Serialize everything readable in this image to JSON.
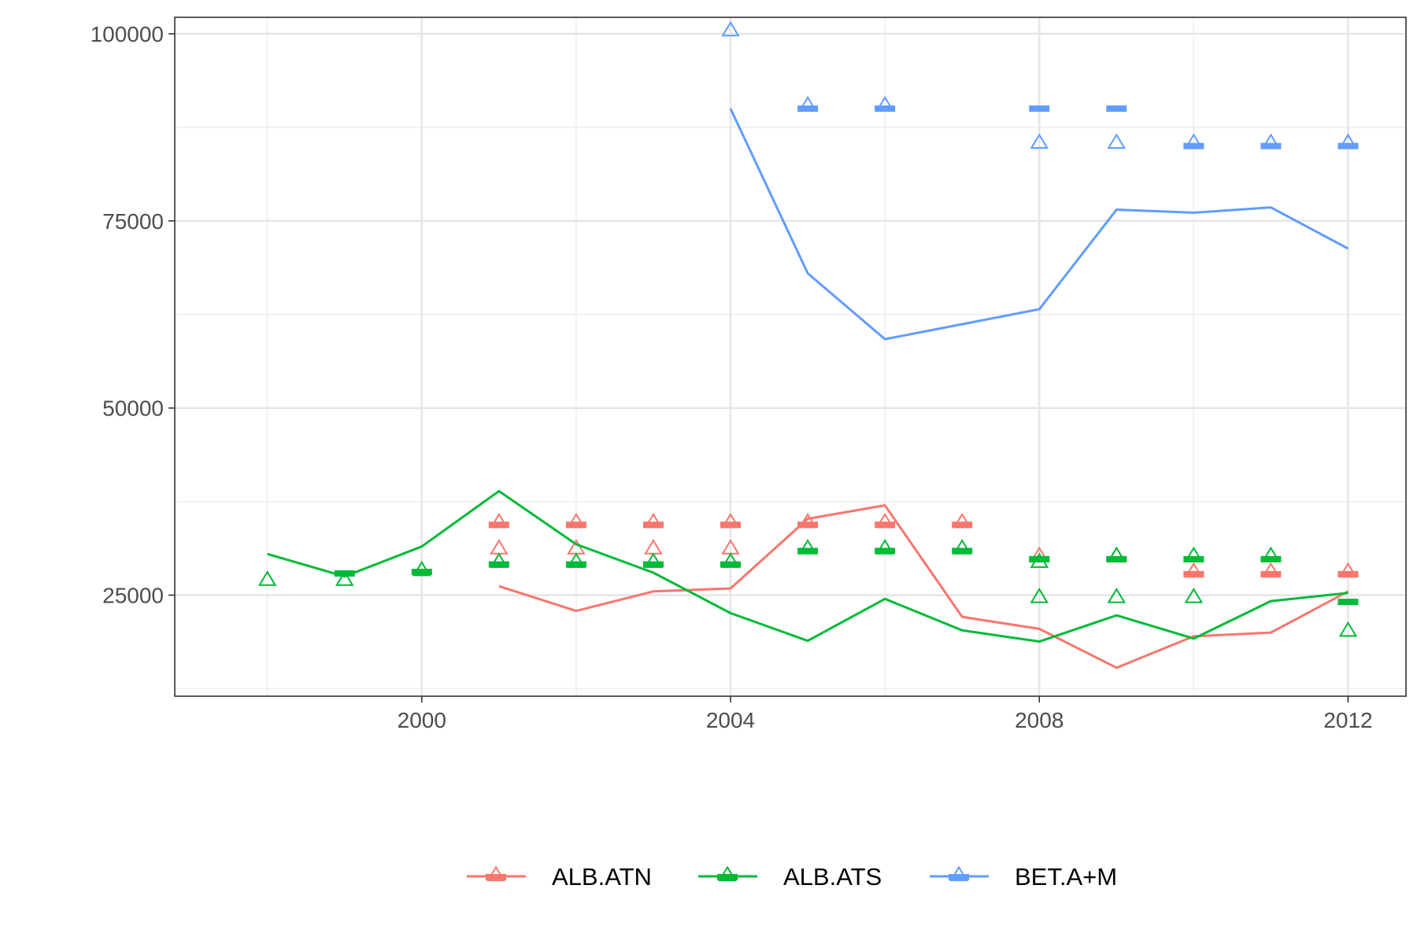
{
  "chart_data": {
    "type": "line",
    "title": "",
    "xlabel": "",
    "ylabel": "",
    "xlim": [
      1996.8,
      2012.75
    ],
    "ylim": [
      11500,
      102200
    ],
    "x_ticks": [
      2000,
      2004,
      2008,
      2012
    ],
    "y_ticks": [
      25000,
      50000,
      75000,
      100000
    ],
    "x_tick_labels": [
      "2000",
      "2004",
      "2008",
      "2012"
    ],
    "y_tick_labels": [
      "25000",
      "50000",
      "75000",
      "100000"
    ],
    "grid": true,
    "legend_position": "bottom",
    "series": [
      {
        "name": "ALB.ATN",
        "color": "#F8766D",
        "line": [
          [
            2001,
            26200
          ],
          [
            2002,
            22900
          ],
          [
            2003,
            25500
          ],
          [
            2004,
            25900
          ],
          [
            2005,
            35200
          ],
          [
            2006,
            37000
          ],
          [
            2007,
            22100
          ],
          [
            2008,
            20500
          ],
          [
            2009,
            15300
          ],
          [
            2010,
            19500
          ],
          [
            2011,
            20000
          ],
          [
            2012,
            25500
          ]
        ],
        "triangles": [
          [
            2001,
            34800
          ],
          [
            2001,
            31300
          ],
          [
            2002,
            34800
          ],
          [
            2002,
            31300
          ],
          [
            2003,
            34800
          ],
          [
            2003,
            31300
          ],
          [
            2004,
            34800
          ],
          [
            2004,
            31300
          ],
          [
            2005,
            34800
          ],
          [
            2006,
            34800
          ],
          [
            2007,
            34800
          ],
          [
            2008,
            30300
          ],
          [
            2009,
            30300
          ],
          [
            2010,
            28200
          ],
          [
            2011,
            28200
          ],
          [
            2012,
            28200
          ]
        ],
        "dashes": [
          [
            2001,
            34400
          ],
          [
            2002,
            34400
          ],
          [
            2003,
            34400
          ],
          [
            2004,
            34400
          ],
          [
            2005,
            34400
          ],
          [
            2006,
            34400
          ],
          [
            2007,
            34400
          ],
          [
            2008,
            29800
          ],
          [
            2009,
            29800
          ],
          [
            2010,
            27800
          ],
          [
            2011,
            27800
          ],
          [
            2012,
            27800
          ]
        ]
      },
      {
        "name": "ALB.ATS",
        "color": "#00BA38",
        "line": [
          [
            1998,
            30500
          ],
          [
            1999,
            27500
          ],
          [
            2000,
            31500
          ],
          [
            2001,
            38900
          ],
          [
            2002,
            31800
          ],
          [
            2003,
            28000
          ],
          [
            2004,
            22600
          ],
          [
            2005,
            18900
          ],
          [
            2006,
            24500
          ],
          [
            2007,
            20300
          ],
          [
            2008,
            18800
          ],
          [
            2009,
            22300
          ],
          [
            2010,
            19200
          ],
          [
            2011,
            24200
          ],
          [
            2012,
            25300
          ]
        ],
        "triangles": [
          [
            1998,
            27100
          ],
          [
            1999,
            27100
          ],
          [
            2000,
            28400
          ],
          [
            2001,
            29500
          ],
          [
            2002,
            29500
          ],
          [
            2003,
            29500
          ],
          [
            2004,
            29500
          ],
          [
            2005,
            31300
          ],
          [
            2006,
            31300
          ],
          [
            2007,
            31300
          ],
          [
            2008,
            29500
          ],
          [
            2008,
            24800
          ],
          [
            2009,
            30300
          ],
          [
            2009,
            24800
          ],
          [
            2010,
            30300
          ],
          [
            2010,
            24800
          ],
          [
            2011,
            30300
          ],
          [
            2012,
            20300
          ]
        ],
        "dashes": [
          [
            1999,
            27900
          ],
          [
            2000,
            28100
          ],
          [
            2001,
            29100
          ],
          [
            2002,
            29100
          ],
          [
            2003,
            29100
          ],
          [
            2004,
            29100
          ],
          [
            2005,
            30900
          ],
          [
            2006,
            30900
          ],
          [
            2007,
            30900
          ],
          [
            2008,
            29800
          ],
          [
            2009,
            29800
          ],
          [
            2010,
            29800
          ],
          [
            2011,
            29800
          ],
          [
            2012,
            24100
          ]
        ]
      },
      {
        "name": "BET.A+M",
        "color": "#619CFF",
        "line": [
          [
            2004,
            90000
          ],
          [
            2005,
            68000
          ],
          [
            2006,
            59200
          ],
          [
            2007,
            61200
          ],
          [
            2008,
            63200
          ],
          [
            2009,
            76500
          ],
          [
            2010,
            76100
          ],
          [
            2011,
            76800
          ],
          [
            2012,
            71300
          ]
        ],
        "triangles": [
          [
            2004,
            100500
          ],
          [
            2005,
            90500
          ],
          [
            2006,
            90500
          ],
          [
            2008,
            85500
          ],
          [
            2009,
            85500
          ],
          [
            2010,
            85500
          ],
          [
            2011,
            85500
          ],
          [
            2012,
            85500
          ]
        ],
        "dashes": [
          [
            2005,
            90000
          ],
          [
            2006,
            90000
          ],
          [
            2008,
            90000
          ],
          [
            2009,
            90000
          ],
          [
            2010,
            85000
          ],
          [
            2011,
            85000
          ],
          [
            2012,
            85000
          ]
        ]
      }
    ]
  }
}
